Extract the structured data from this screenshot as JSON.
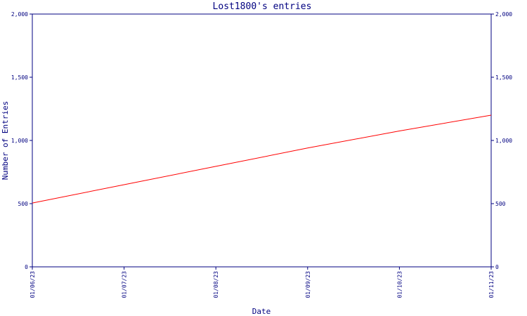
{
  "chart_data": {
    "type": "line",
    "title": "Lost1800's entries",
    "xlabel": "Date",
    "ylabel": "Number of Entries",
    "x": [
      "01/06/23",
      "01/07/23",
      "01/08/23",
      "01/09/23",
      "01/10/23",
      "01/11/23"
    ],
    "series": [
      {
        "values": [
          505,
          650,
          795,
          940,
          1075,
          1200
        ],
        "color": "#ff0000"
      }
    ],
    "ylim": [
      0,
      2000
    ],
    "yticks": [
      0,
      500,
      1000,
      1500,
      2000
    ],
    "ytick_labels": [
      "0",
      "500",
      "1,000",
      "1,500",
      "2,000"
    ],
    "right_axis": true,
    "grid": false,
    "colors": {
      "axis": "#000080",
      "line": "#ff0000",
      "background": "#ffffff"
    }
  }
}
